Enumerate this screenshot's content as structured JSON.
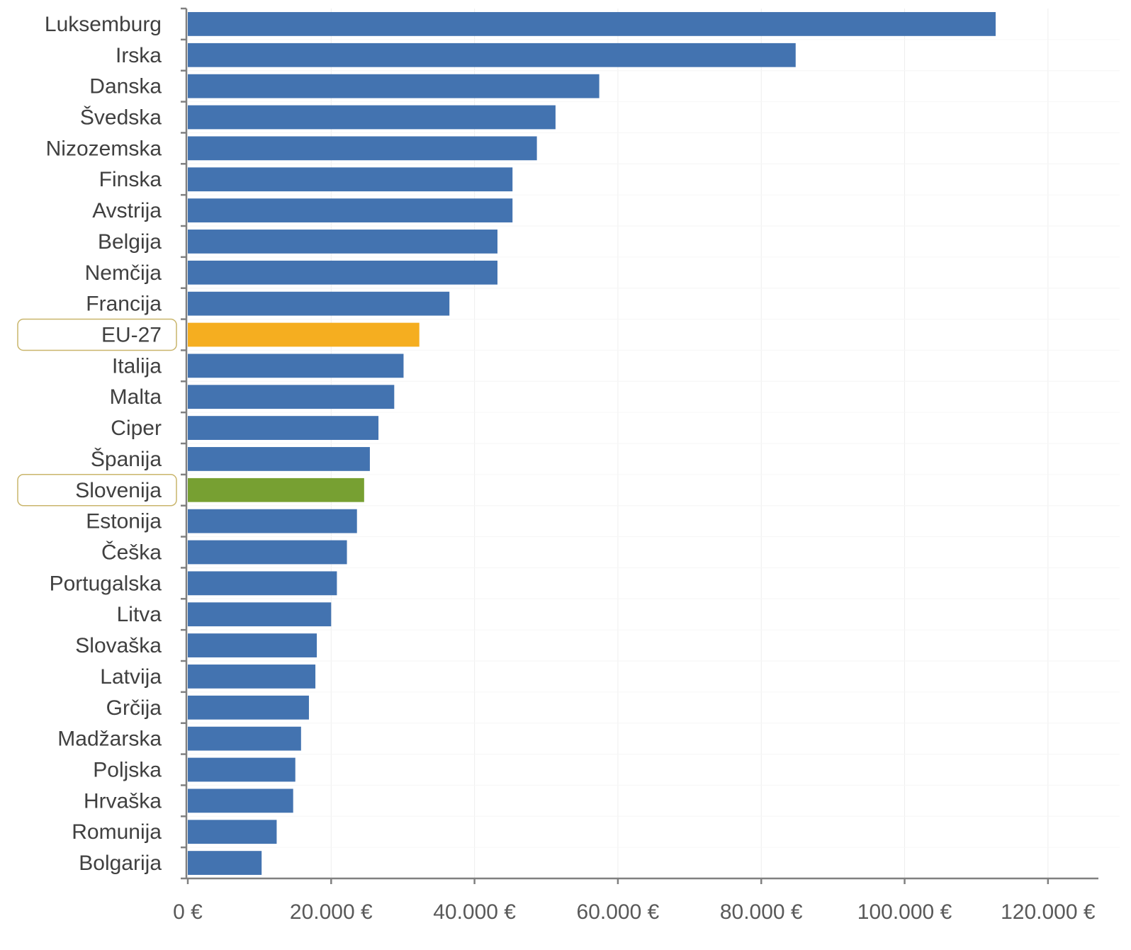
{
  "chart_data": {
    "type": "bar",
    "orientation": "horizontal",
    "categories": [
      "Luksemburg",
      "Irska",
      "Danska",
      "Švedska",
      "Nizozemska",
      "Finska",
      "Avstrija",
      "Belgija",
      "Nemčija",
      "Francija",
      "EU-27",
      "Italija",
      "Malta",
      "Ciper",
      "Španija",
      "Slovenija",
      "Estonija",
      "Češka",
      "Portugalska",
      "Litva",
      "Slovaška",
      "Latvija",
      "Grčija",
      "Madžarska",
      "Poljska",
      "Hrvaška",
      "Romunija",
      "Bolgarija"
    ],
    "values": [
      112700,
      84800,
      57400,
      51300,
      48700,
      45300,
      45300,
      43200,
      43200,
      36500,
      32300,
      30100,
      28800,
      26600,
      25400,
      24600,
      23600,
      22200,
      20800,
      20000,
      18000,
      17800,
      16900,
      15800,
      15000,
      14700,
      12400,
      10300
    ],
    "xlim": [
      0,
      130000
    ],
    "x_ticks": [
      0,
      20000,
      40000,
      60000,
      80000,
      100000,
      120000
    ],
    "x_tick_labels": [
      "0 €",
      "20.000 €",
      "40.000 €",
      "60.000 €",
      "80.000 €",
      "100.000 €",
      "120.000 €"
    ],
    "grid": "vertical",
    "colors": {
      "default": "#4373B0",
      "EU-27": "#F5AE20",
      "Slovenija": "#77A032",
      "axis": "#808080",
      "grid": "#EEEEEE",
      "highlight_outline": "#C9B56B"
    },
    "highlighted_categories": [
      "EU-27",
      "Slovenija"
    ]
  }
}
